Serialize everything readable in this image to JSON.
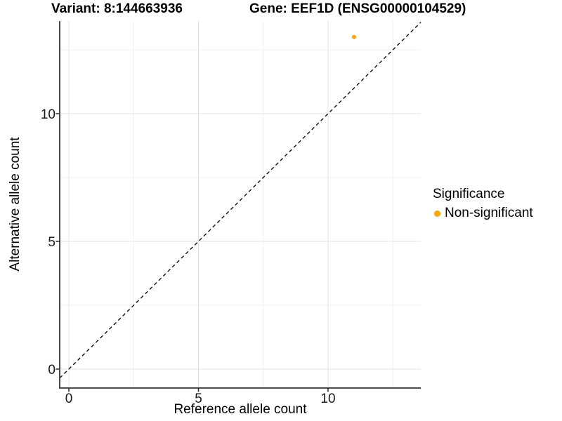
{
  "chart_data": {
    "type": "scatter",
    "title_left": "Variant: 8:144663936",
    "title_right": "Gene: EEF1D (ENSG00000104529)",
    "xlabel": "Reference allele count",
    "ylabel": "Alternative allele count",
    "x_ticks": [
      0,
      5,
      10
    ],
    "y_ticks": [
      0,
      5,
      10
    ],
    "x_minor_gridlines": [
      2.5,
      7.5,
      12.5
    ],
    "y_minor_gridlines": [
      2.5,
      7.5,
      12.5
    ],
    "xlim": [
      -0.35,
      13.6
    ],
    "ylim": [
      -0.74,
      13.6
    ],
    "grid": "major and minor, faint gray on white",
    "points": [
      {
        "x": 11,
        "y": 13,
        "series": "Non-significant"
      }
    ],
    "reference_line": {
      "equation": "y = x",
      "style": "dashed",
      "color": "#111111"
    },
    "legend": {
      "title": "Significance",
      "position": "right",
      "items": [
        {
          "label": "Non-significant",
          "color": "#FFA500"
        }
      ]
    },
    "colors": {
      "point": "#FFA500",
      "grid_major": "#e3e3e3",
      "grid_minor": "#f0f0f0",
      "axis_line": "#4b4b4b",
      "tick_mark": "#333333"
    }
  }
}
